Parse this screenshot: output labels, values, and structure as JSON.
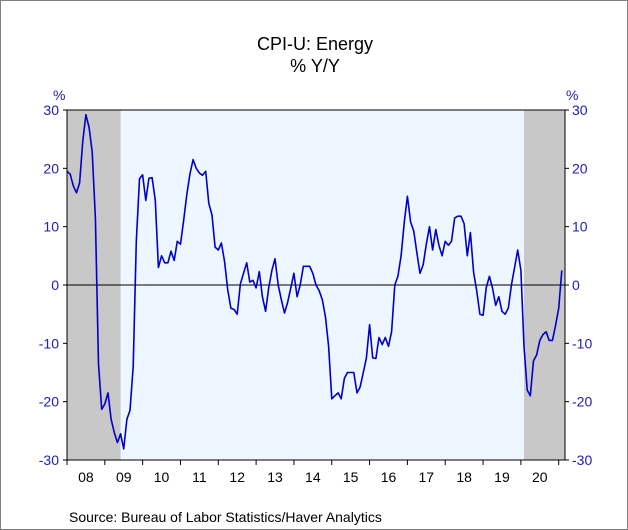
{
  "chart_data": {
    "type": "line",
    "title": "CPI-U: Energy",
    "subtitle": "% Y/Y",
    "left_unit": "%",
    "right_unit": "%",
    "ylim": [
      -30,
      30
    ],
    "yticks": [
      30,
      20,
      10,
      0,
      -10,
      -20,
      -30
    ],
    "xlim": [
      "2008-01",
      "2021-03"
    ],
    "x_tick_labels": [
      "08",
      "09",
      "10",
      "11",
      "12",
      "13",
      "14",
      "15",
      "16",
      "17",
      "18",
      "19",
      "20"
    ],
    "x_tick_years": [
      2008,
      2009,
      2010,
      2011,
      2012,
      2013,
      2014,
      2015,
      2016,
      2017,
      2018,
      2019,
      2020
    ],
    "recessions": [
      {
        "start": "2008-01",
        "end": "2009-06"
      },
      {
        "start": "2020-02",
        "end": "2021-03"
      }
    ],
    "zero_line": true,
    "line_color": "#0000cc",
    "plot_background": "#eef6ff",
    "recession_color": "#c8c8c8",
    "series": [
      {
        "start": "2008-01",
        "frequency": "monthly",
        "values": [
          19.5,
          19.0,
          17.0,
          15.8,
          17.5,
          24.7,
          29.2,
          27.0,
          22.8,
          11.5,
          -13.5,
          -21.3,
          -20.4,
          -18.5,
          -23.0,
          -25.3,
          -27.0,
          -25.5,
          -28.1,
          -23.0,
          -21.5,
          -14.0,
          7.5,
          18.2,
          18.9,
          14.5,
          18.3,
          18.4,
          14.5,
          3.0,
          5.0,
          3.8,
          3.8,
          5.8,
          4.2,
          7.5,
          7.0,
          11.0,
          15.5,
          19.0,
          21.5,
          20.0,
          19.2,
          18.8,
          19.5,
          14.0,
          12.0,
          6.5,
          6.0,
          7.2,
          4.0,
          -0.8,
          -4.0,
          -4.2,
          -5.0,
          0.2,
          2.0,
          3.8,
          0.5,
          0.8,
          -0.5,
          2.3,
          -2.0,
          -4.5,
          -0.5,
          2.5,
          4.5,
          0.0,
          -2.5,
          -4.8,
          -3.0,
          -0.5,
          2.0,
          -2.0,
          0.0,
          3.2,
          3.2,
          3.2,
          2.0,
          0.0,
          -1.0,
          -2.5,
          -5.5,
          -10.5,
          -19.5,
          -19.0,
          -18.5,
          -19.5,
          -16.0,
          -15.0,
          -15.0,
          -15.0,
          -18.5,
          -17.5,
          -15.0,
          -12.5,
          -6.8,
          -12.5,
          -12.6,
          -9.0,
          -10.2,
          -9.0,
          -10.5,
          -8.0,
          0.0,
          1.5,
          5.0,
          10.8,
          15.2,
          10.8,
          9.3,
          5.5,
          2.0,
          3.5,
          7.0,
          10.0,
          6.0,
          9.5,
          6.8,
          5.0,
          7.5,
          6.8,
          7.5,
          11.5,
          11.8,
          11.8,
          10.5,
          5.0,
          9.0,
          2.2,
          -1.0,
          -5.0,
          -5.2,
          -0.5,
          1.5,
          -0.5,
          -3.5,
          -2.0,
          -4.5,
          -5.0,
          -4.0,
          0.0,
          3.0,
          6.0,
          2.5,
          -10.5,
          -18.0,
          -19.0,
          -13.0,
          -12.0,
          -9.5,
          -8.5,
          -8.0,
          -9.5,
          -9.5,
          -7.0,
          -4.0,
          2.5
        ]
      }
    ]
  },
  "source": "Source:  Bureau of Labor Statistics/Haver Analytics"
}
